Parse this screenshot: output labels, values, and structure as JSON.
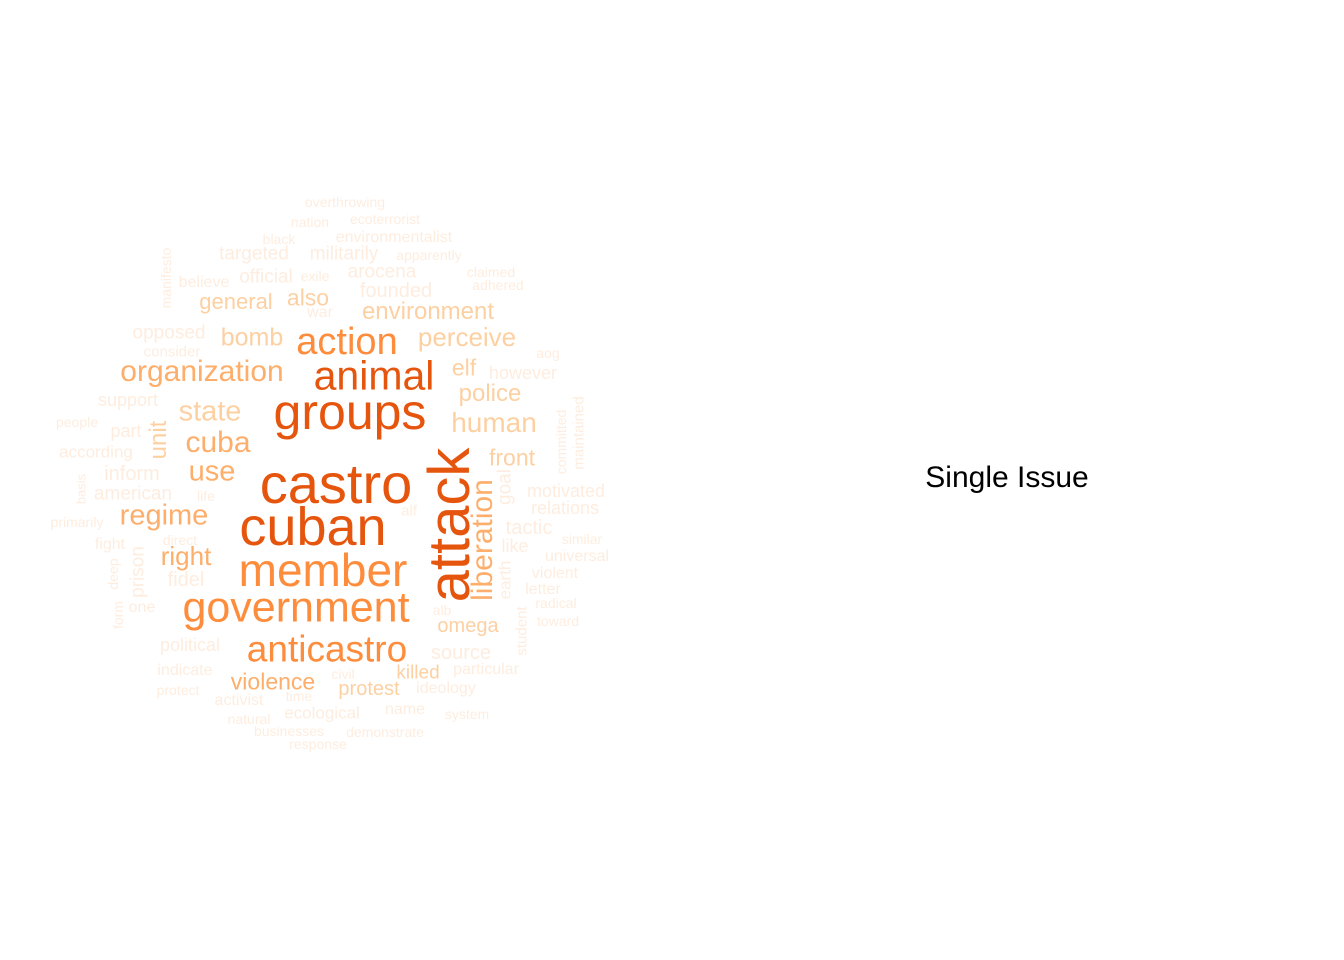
{
  "label": "Single Issue",
  "palette": {
    "level1": "#e6550d",
    "level2": "#fd8d3c",
    "level3": "#fdae6b",
    "level4": "#fdd0a2",
    "level5": "#feeddf"
  },
  "words": [
    {
      "text": "castro",
      "level": 1
    },
    {
      "text": "cuban",
      "level": 1
    },
    {
      "text": "attack",
      "level": 1
    },
    {
      "text": "groups",
      "level": 1
    },
    {
      "text": "member",
      "level": 2
    },
    {
      "text": "government",
      "level": 2
    },
    {
      "text": "animal",
      "level": 1
    },
    {
      "text": "anticastro",
      "level": 2
    },
    {
      "text": "action",
      "level": 2
    },
    {
      "text": "liberation",
      "level": 3
    },
    {
      "text": "organization",
      "level": 3
    },
    {
      "text": "regime",
      "level": 3
    },
    {
      "text": "cuba",
      "level": 3
    },
    {
      "text": "state",
      "level": 4
    },
    {
      "text": "use",
      "level": 3
    },
    {
      "text": "human",
      "level": 4
    },
    {
      "text": "perceive",
      "level": 4
    },
    {
      "text": "environment",
      "level": 4
    },
    {
      "text": "right",
      "level": 3
    },
    {
      "text": "bomb",
      "level": 4
    },
    {
      "text": "police",
      "level": 4
    },
    {
      "text": "front",
      "level": 4
    },
    {
      "text": "violence",
      "level": 3
    },
    {
      "text": "omega",
      "level": 4
    },
    {
      "text": "unit",
      "level": 4
    },
    {
      "text": "general",
      "level": 4
    },
    {
      "text": "also",
      "level": 4
    },
    {
      "text": "elf",
      "level": 4
    },
    {
      "text": "source",
      "level": 5
    },
    {
      "text": "protest",
      "level": 4
    },
    {
      "text": "killed",
      "level": 4
    },
    {
      "text": "tactic",
      "level": 5
    },
    {
      "text": "goal",
      "level": 5
    },
    {
      "text": "inform",
      "level": 5
    },
    {
      "text": "american",
      "level": 5
    },
    {
      "text": "fidel",
      "level": 5
    },
    {
      "text": "prison",
      "level": 5
    },
    {
      "text": "political",
      "level": 5
    },
    {
      "text": "founded",
      "level": 5
    },
    {
      "text": "targeted",
      "level": 5
    },
    {
      "text": "militarily",
      "level": 5
    },
    {
      "text": "arocena",
      "level": 5
    },
    {
      "text": "official",
      "level": 5
    },
    {
      "text": "opposed",
      "level": 5
    },
    {
      "text": "support",
      "level": 5
    },
    {
      "text": "according",
      "level": 5
    },
    {
      "text": "part",
      "level": 5
    },
    {
      "text": "however",
      "level": 5
    },
    {
      "text": "motivated",
      "level": 5
    },
    {
      "text": "relations",
      "level": 5
    },
    {
      "text": "like",
      "level": 5
    },
    {
      "text": "universal",
      "level": 5
    },
    {
      "text": "violent",
      "level": 5
    },
    {
      "text": "letter",
      "level": 5
    },
    {
      "text": "earth",
      "level": 5
    },
    {
      "text": "particular",
      "level": 5
    },
    {
      "text": "ideology",
      "level": 5
    },
    {
      "text": "ecological",
      "level": 5
    },
    {
      "text": "name",
      "level": 5
    },
    {
      "text": "indicate",
      "level": 5
    },
    {
      "text": "activist",
      "level": 5
    },
    {
      "text": "environmentalist",
      "level": 5
    },
    {
      "text": "war",
      "level": 5
    },
    {
      "text": "believe",
      "level": 5
    },
    {
      "text": "consider",
      "level": 5
    },
    {
      "text": "fight",
      "level": 5
    },
    {
      "text": "one",
      "level": 5
    },
    {
      "text": "student",
      "level": 5
    },
    {
      "text": "committed",
      "level": 5
    },
    {
      "text": "maintained",
      "level": 5
    },
    {
      "text": "manifesto",
      "level": 5
    },
    {
      "text": "overthrowing",
      "level": 5
    },
    {
      "text": "nation",
      "level": 5
    },
    {
      "text": "ecoterrorist",
      "level": 5
    },
    {
      "text": "black",
      "level": 5
    },
    {
      "text": "apparently",
      "level": 5
    },
    {
      "text": "exile",
      "level": 5
    },
    {
      "text": "claimed",
      "level": 5
    },
    {
      "text": "adhered",
      "level": 5
    },
    {
      "text": "aog",
      "level": 5
    },
    {
      "text": "people",
      "level": 5
    },
    {
      "text": "basis",
      "level": 5
    },
    {
      "text": "life",
      "level": 5
    },
    {
      "text": "primarily",
      "level": 5
    },
    {
      "text": "alf",
      "level": 5
    },
    {
      "text": "direct",
      "level": 5
    },
    {
      "text": "deep",
      "level": 5
    },
    {
      "text": "form",
      "level": 5
    },
    {
      "text": "alb",
      "level": 5
    },
    {
      "text": "similar",
      "level": 5
    },
    {
      "text": "radical",
      "level": 5
    },
    {
      "text": "toward",
      "level": 5
    },
    {
      "text": "protect",
      "level": 5
    },
    {
      "text": "civil",
      "level": 5
    },
    {
      "text": "time",
      "level": 5
    },
    {
      "text": "natural",
      "level": 5
    },
    {
      "text": "businesses",
      "level": 5
    },
    {
      "text": "demonstrate",
      "level": 5
    },
    {
      "text": "response",
      "level": 5
    },
    {
      "text": "system",
      "level": 5
    }
  ]
}
